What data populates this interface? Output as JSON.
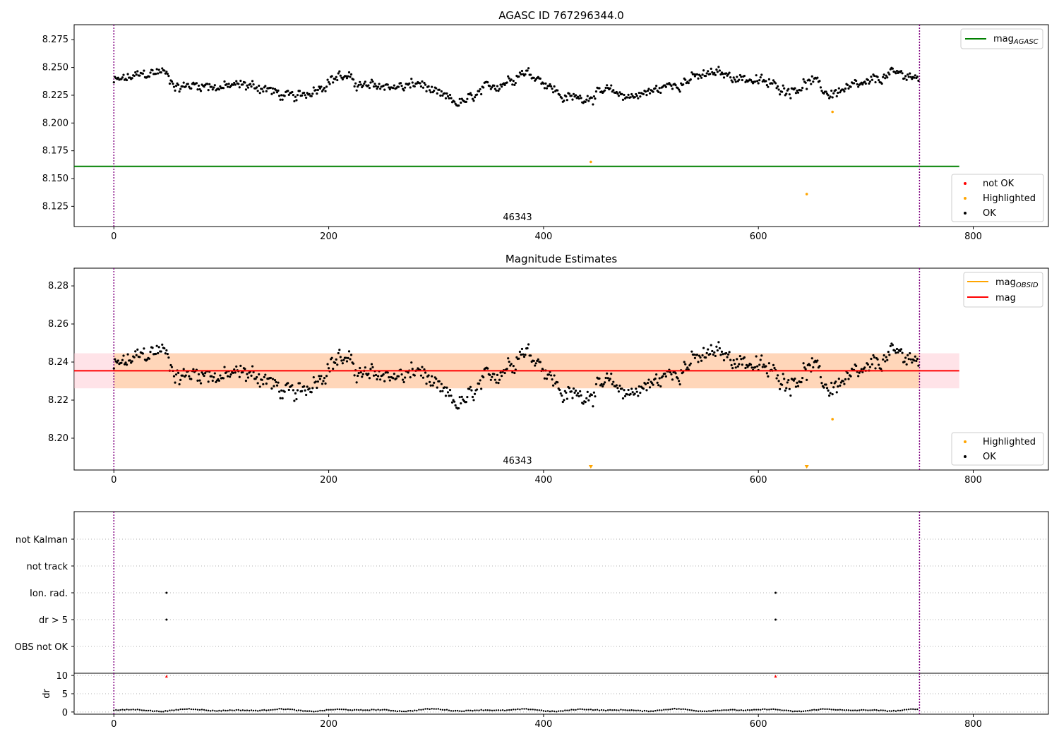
{
  "chart_data": [
    {
      "type": "scatter",
      "title": "AGASC ID 767296344.0",
      "x_ticks": [
        0,
        200,
        400,
        600,
        800
      ],
      "y_ticks": [
        "8.125",
        "8.150",
        "8.175",
        "8.200",
        "8.225",
        "8.250",
        "8.275"
      ],
      "xlim": [
        -37,
        870
      ],
      "ylim": [
        8.1068,
        8.2885
      ],
      "obsid_label": "46343",
      "obsid_bounds": [
        0,
        750
      ],
      "mag_agasc": 8.161,
      "mag_agasc_xrange": [
        -37,
        787
      ],
      "ok_series": {
        "x_start": 0,
        "x_end": 750,
        "n": 750,
        "mean": 8.2355,
        "anchors": [
          [
            0,
            8.237
          ],
          [
            30,
            8.244
          ],
          [
            45,
            8.247
          ],
          [
            60,
            8.232
          ],
          [
            80,
            8.235
          ],
          [
            100,
            8.232
          ],
          [
            120,
            8.234
          ],
          [
            140,
            8.232
          ],
          [
            155,
            8.225
          ],
          [
            170,
            8.222
          ],
          [
            200,
            8.238
          ],
          [
            210,
            8.243
          ],
          [
            235,
            8.232
          ],
          [
            250,
            8.234
          ],
          [
            270,
            8.232
          ],
          [
            285,
            8.236
          ],
          [
            300,
            8.225
          ],
          [
            320,
            8.218
          ],
          [
            330,
            8.22
          ],
          [
            350,
            8.232
          ],
          [
            370,
            8.24
          ],
          [
            380,
            8.247
          ],
          [
            395,
            8.242
          ],
          [
            410,
            8.23
          ],
          [
            420,
            8.222
          ],
          [
            440,
            8.224
          ],
          [
            460,
            8.228
          ],
          [
            480,
            8.224
          ],
          [
            500,
            8.228
          ],
          [
            530,
            8.238
          ],
          [
            560,
            8.245
          ],
          [
            590,
            8.24
          ],
          [
            610,
            8.235
          ],
          [
            630,
            8.23
          ],
          [
            650,
            8.238
          ],
          [
            665,
            8.226
          ],
          [
            675,
            8.229
          ],
          [
            700,
            8.234
          ],
          [
            720,
            8.243
          ],
          [
            740,
            8.244
          ],
          [
            750,
            8.238
          ]
        ],
        "noise": 0.006
      },
      "highlighted_points": [
        {
          "x": 444,
          "y": 8.165
        },
        {
          "x": 645,
          "y": 8.136
        },
        {
          "x": 669,
          "y": 8.21
        }
      ],
      "legend_lines": [
        {
          "label": "mag",
          "subscript": "AGASC",
          "color": "#008000"
        }
      ],
      "legend_markers": [
        {
          "label": "not OK",
          "color": "#ff0000"
        },
        {
          "label": "Highlighted",
          "color": "#ffa500"
        },
        {
          "label": "OK",
          "color": "#000000"
        }
      ]
    },
    {
      "type": "scatter",
      "title": "Magnitude Estimates",
      "x_ticks": [
        0,
        200,
        400,
        600,
        800
      ],
      "y_ticks": [
        "8.20",
        "8.22",
        "8.24",
        "8.26",
        "8.28"
      ],
      "xlim": [
        -37,
        870
      ],
      "ylim": [
        8.1833,
        8.2893
      ],
      "obsid_label": "46343",
      "mag": 8.2354,
      "mag_band_obsid": [
        8.2262,
        8.2446
      ],
      "mag_band_overall": [
        8.2262,
        8.2446
      ],
      "band_xrange": [
        -37,
        787
      ],
      "highlighted_points": [
        {
          "x": 669,
          "y": 8.21
        }
      ],
      "clipped_markers_x": [
        444,
        645
      ],
      "legend_lines": [
        {
          "label": "mag",
          "subscript": "OBSID",
          "color": "#ffa500"
        },
        {
          "label": "mag",
          "subscript": "",
          "color": "#ff0000"
        }
      ],
      "legend_markers": [
        {
          "label": "Highlighted",
          "color": "#ffa500"
        },
        {
          "label": "OK",
          "color": "#000000"
        }
      ]
    },
    {
      "type": "scatter",
      "title": "",
      "categories": [
        "not Kalman",
        "not track",
        "Ion. rad.",
        "dr > 5",
        "OBS not OK"
      ],
      "flag_points": [
        {
          "category": "Ion. rad.",
          "x": [
            49,
            616
          ]
        },
        {
          "category": "dr > 5",
          "x": [
            49,
            616
          ]
        }
      ],
      "xlim": [
        -37,
        870
      ],
      "x_ticks": [
        0,
        200,
        400,
        600,
        800
      ]
    },
    {
      "type": "scatter",
      "title": "",
      "ylabel": "dr",
      "y_ticks": [
        "0",
        "5",
        "10"
      ],
      "ylim": [
        -0.6,
        10.6
      ],
      "clipped_markers_x": [
        49,
        616
      ],
      "dr_series": {
        "base": 0.5,
        "amp": 0.35
      },
      "x_ticks": [
        0,
        200,
        400,
        600,
        800
      ],
      "xlim": [
        -37,
        870
      ]
    }
  ]
}
